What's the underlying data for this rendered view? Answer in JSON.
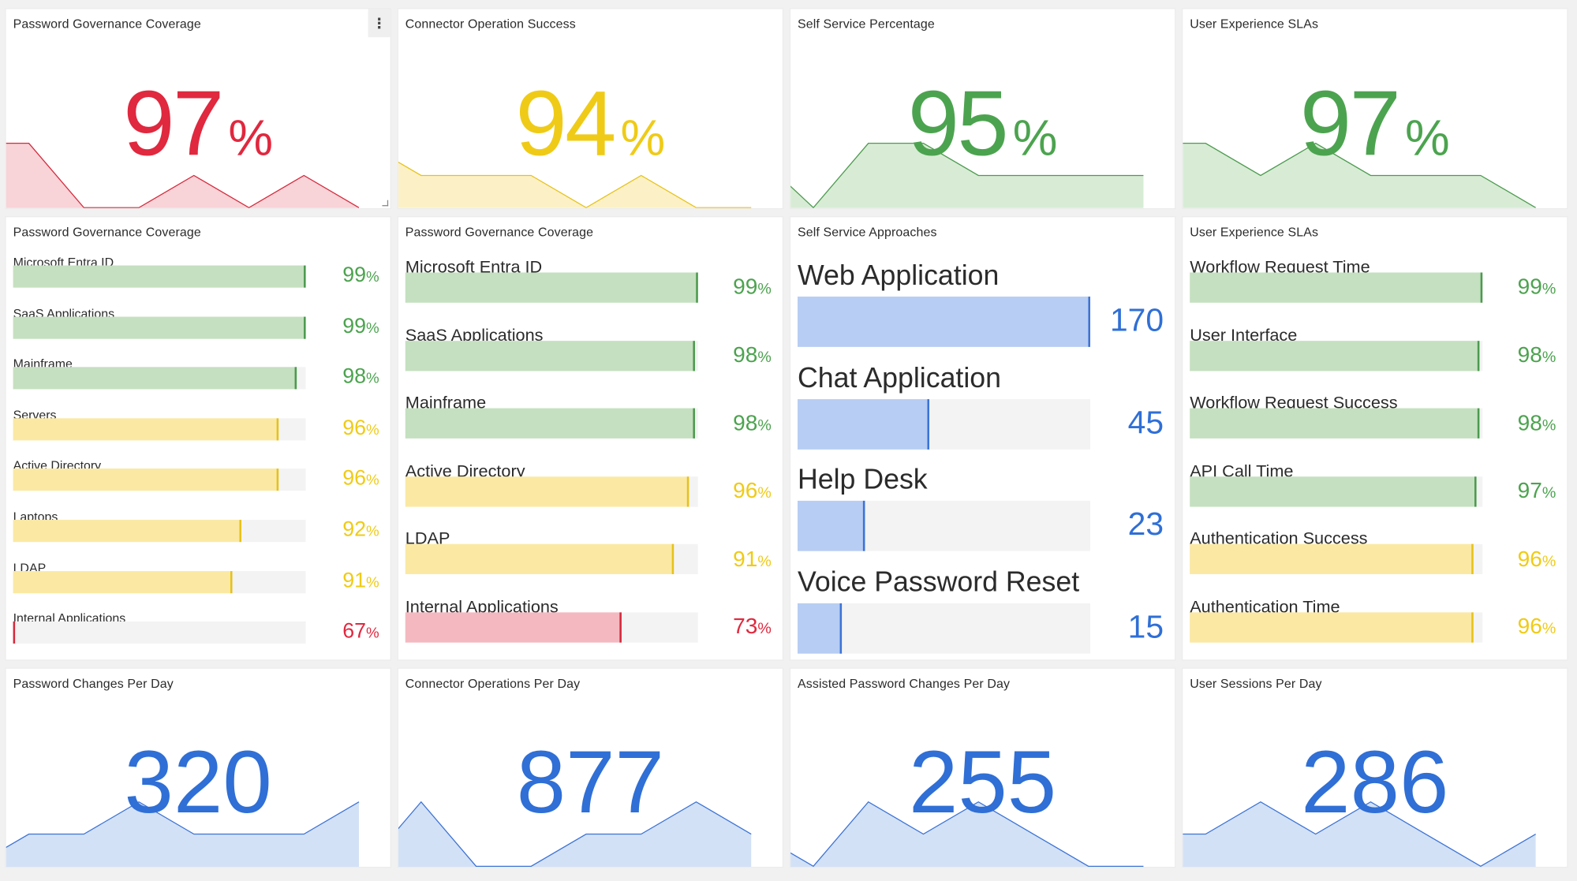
{
  "colors": {
    "red": "#e0283e",
    "yellow": "#efcb17",
    "green": "#4ca34f",
    "blue": "#2f6fd6",
    "fills": {
      "red": "#f4b9c0",
      "yellow": "#fbe9a3",
      "green": "#c5e0c0",
      "blue": "#b7cdf3"
    },
    "marks": {
      "red": "#d42a3c",
      "yellow": "#e6c21a",
      "green": "#4c9a4f",
      "blue": "#3b73d6"
    },
    "areas": {
      "red": "#f8d3d8",
      "yellow": "#fcf1c6",
      "green": "#d8ecd5",
      "blue": "#d3e1f6"
    }
  },
  "menu_icon": "kebab-menu-icon",
  "kpis": [
    {
      "title": "Password Governance Coverage",
      "value": "97",
      "unit": "%",
      "color": "red",
      "spark": [
        1,
        1,
        0,
        0,
        0.5,
        0,
        0.5,
        0
      ]
    },
    {
      "title": "Connector Operation Success",
      "value": "94",
      "unit": "%",
      "color": "yellow",
      "spark": [
        1,
        0.5,
        0.5,
        0.5,
        0,
        0.5,
        0,
        0
      ]
    },
    {
      "title": "Self Service Percentage",
      "value": "95",
      "unit": "%",
      "color": "green",
      "spark": [
        0.8,
        0,
        1,
        1,
        0.5,
        0.5,
        0.5,
        0.5
      ]
    },
    {
      "title": "User Experience SLAs",
      "value": "97",
      "unit": "%",
      "color": "green",
      "spark": [
        1,
        1,
        0.5,
        1,
        0.5,
        0.5,
        0.5,
        0
      ]
    }
  ],
  "counts": [
    {
      "title": "Password Changes Per Day",
      "value": "320",
      "color": "blue",
      "spark": [
        0,
        0.5,
        0.5,
        1,
        0.5,
        0.5,
        0.5,
        1
      ]
    },
    {
      "title": "Connector Operations Per Day",
      "value": "877",
      "color": "blue",
      "spark": [
        0,
        1,
        0,
        0,
        0.5,
        0.5,
        1,
        0.5
      ]
    },
    {
      "title": "Assisted Password Changes Per Day",
      "value": "255",
      "color": "blue",
      "spark": [
        0.5,
        0,
        1,
        0.5,
        1,
        0.5,
        0,
        0
      ]
    },
    {
      "title": "User Sessions Per Day",
      "value": "286",
      "color": "blue",
      "spark": [
        0.5,
        0.5,
        1,
        0.5,
        1,
        0.5,
        0,
        0.5
      ]
    }
  ],
  "lists": [
    {
      "title": "Password Governance Coverage",
      "unit": "%",
      "scale": [
        67,
        99
      ],
      "items": [
        {
          "label": "Microsoft Entra ID",
          "value": 99,
          "color": "green"
        },
        {
          "label": "SaaS Applications",
          "value": 99,
          "color": "green"
        },
        {
          "label": "Mainframe",
          "value": 98,
          "color": "green"
        },
        {
          "label": "Servers",
          "value": 96,
          "color": "yellow"
        },
        {
          "label": "Active Directory",
          "value": 96,
          "color": "yellow"
        },
        {
          "label": "Laptops",
          "value": 92,
          "color": "yellow"
        },
        {
          "label": "LDAP",
          "value": 91,
          "color": "yellow"
        },
        {
          "label": "Internal Applications",
          "value": 67,
          "color": "red"
        }
      ]
    },
    {
      "title": "Password Governance Coverage",
      "unit": "%",
      "scale": [
        0,
        99
      ],
      "items": [
        {
          "label": "Microsoft Entra ID",
          "value": 99,
          "color": "green"
        },
        {
          "label": "SaaS Applications",
          "value": 98,
          "color": "green"
        },
        {
          "label": "Mainframe",
          "value": 98,
          "color": "green"
        },
        {
          "label": "Active Directory",
          "value": 96,
          "color": "yellow"
        },
        {
          "label": "LDAP",
          "value": 91,
          "color": "yellow"
        },
        {
          "label": "Internal Applications",
          "value": 73,
          "color": "red"
        }
      ]
    },
    {
      "title": "Self Service Approaches",
      "unit": "",
      "scale": [
        0,
        100
      ],
      "items": [
        {
          "label": "Web Application",
          "value": 170,
          "color": "blue"
        },
        {
          "label": "Chat Application",
          "value": 45,
          "color": "blue"
        },
        {
          "label": "Help Desk",
          "value": 23,
          "color": "blue"
        },
        {
          "label": "Voice Password Reset",
          "value": 15,
          "color": "blue"
        }
      ]
    },
    {
      "title": "User Experience SLAs",
      "unit": "%",
      "scale": [
        0,
        99
      ],
      "items": [
        {
          "label": "Workflow Request Time",
          "value": 99,
          "color": "green"
        },
        {
          "label": "User Interface",
          "value": 98,
          "color": "green"
        },
        {
          "label": "Workflow Request Success",
          "value": 98,
          "color": "green"
        },
        {
          "label": "API Call Time",
          "value": 97,
          "color": "green"
        },
        {
          "label": "Authentication Success",
          "value": 96,
          "color": "yellow"
        },
        {
          "label": "Authentication Time",
          "value": 96,
          "color": "yellow"
        }
      ]
    }
  ]
}
